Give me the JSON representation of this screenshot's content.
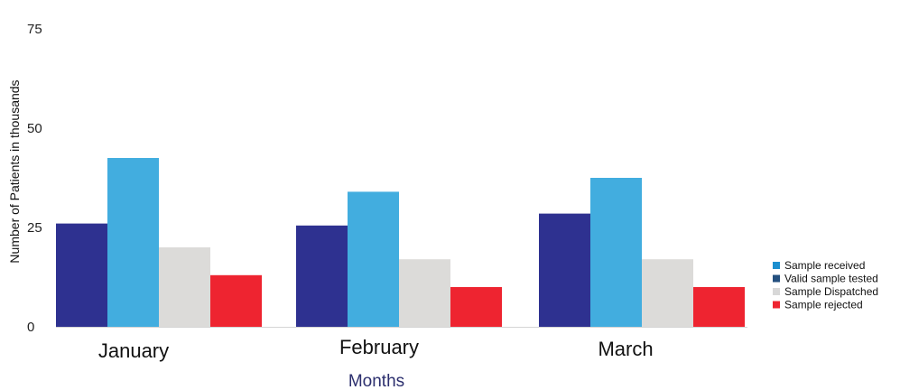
{
  "chart_data": {
    "type": "bar",
    "title": "",
    "xlabel": "Months",
    "ylabel": "Number of  Patients in thousands",
    "ylim": [
      0,
      75
    ],
    "yticks": [
      0,
      25,
      50,
      75
    ],
    "categories": [
      "January",
      "February",
      "March"
    ],
    "series": [
      {
        "name": "Valid sample tested",
        "color": "#2e3190",
        "values": [
          26,
          25.5,
          28.5
        ]
      },
      {
        "name": "Sample received",
        "color": "#42addf",
        "values": [
          42.5,
          34,
          37.5
        ]
      },
      {
        "name": "Sample Dispatched",
        "color": "#dcdbd9",
        "values": [
          20,
          17,
          17
        ]
      },
      {
        "name": "Sample rejected",
        "color": "#ee2430",
        "values": [
          13,
          10,
          10
        ]
      }
    ],
    "legend": {
      "placement": "right",
      "entries": [
        {
          "label": "Sample received",
          "color": "#1c8fcf"
        },
        {
          "label": "Valid sample tested",
          "color": "#24507f"
        },
        {
          "label": "Sample Dispatched",
          "color": "#d8d8d8"
        },
        {
          "label": "Sample rejected",
          "color": "#ee2430"
        }
      ]
    },
    "grid": false
  }
}
